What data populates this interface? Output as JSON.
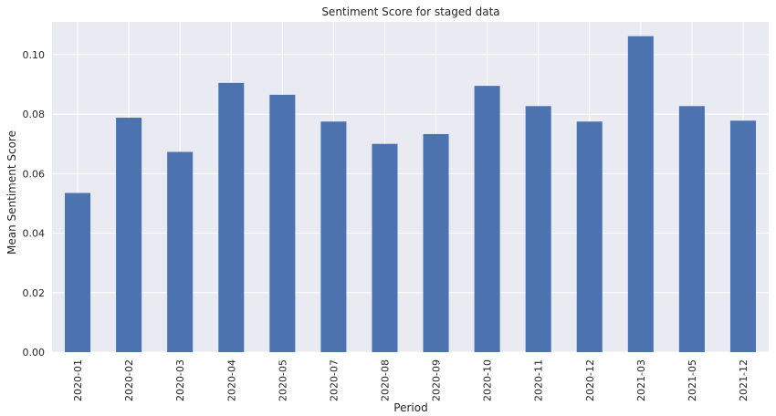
{
  "chart_data": {
    "type": "bar",
    "title": "Sentiment Score for staged data",
    "xlabel": "Period",
    "ylabel": "Mean Sentiment Score",
    "categories": [
      "2020-01",
      "2020-02",
      "2020-03",
      "2020-04",
      "2020-05",
      "2020-07",
      "2020-08",
      "2020-09",
      "2020-10",
      "2020-11",
      "2020-12",
      "2021-03",
      "2021-05",
      "2021-12"
    ],
    "values": [
      0.0535,
      0.0788,
      0.0673,
      0.0905,
      0.0865,
      0.0775,
      0.07,
      0.0733,
      0.0895,
      0.0827,
      0.0775,
      0.1062,
      0.0827,
      0.0778
    ],
    "yticks": [
      "0.00",
      "0.02",
      "0.04",
      "0.06",
      "0.08",
      "0.10"
    ],
    "ylim": [
      0,
      0.111
    ],
    "grid": true,
    "bar_color": "#4c72b0",
    "background_color": "#eaeaf2",
    "grid_color": "#ffffff"
  }
}
